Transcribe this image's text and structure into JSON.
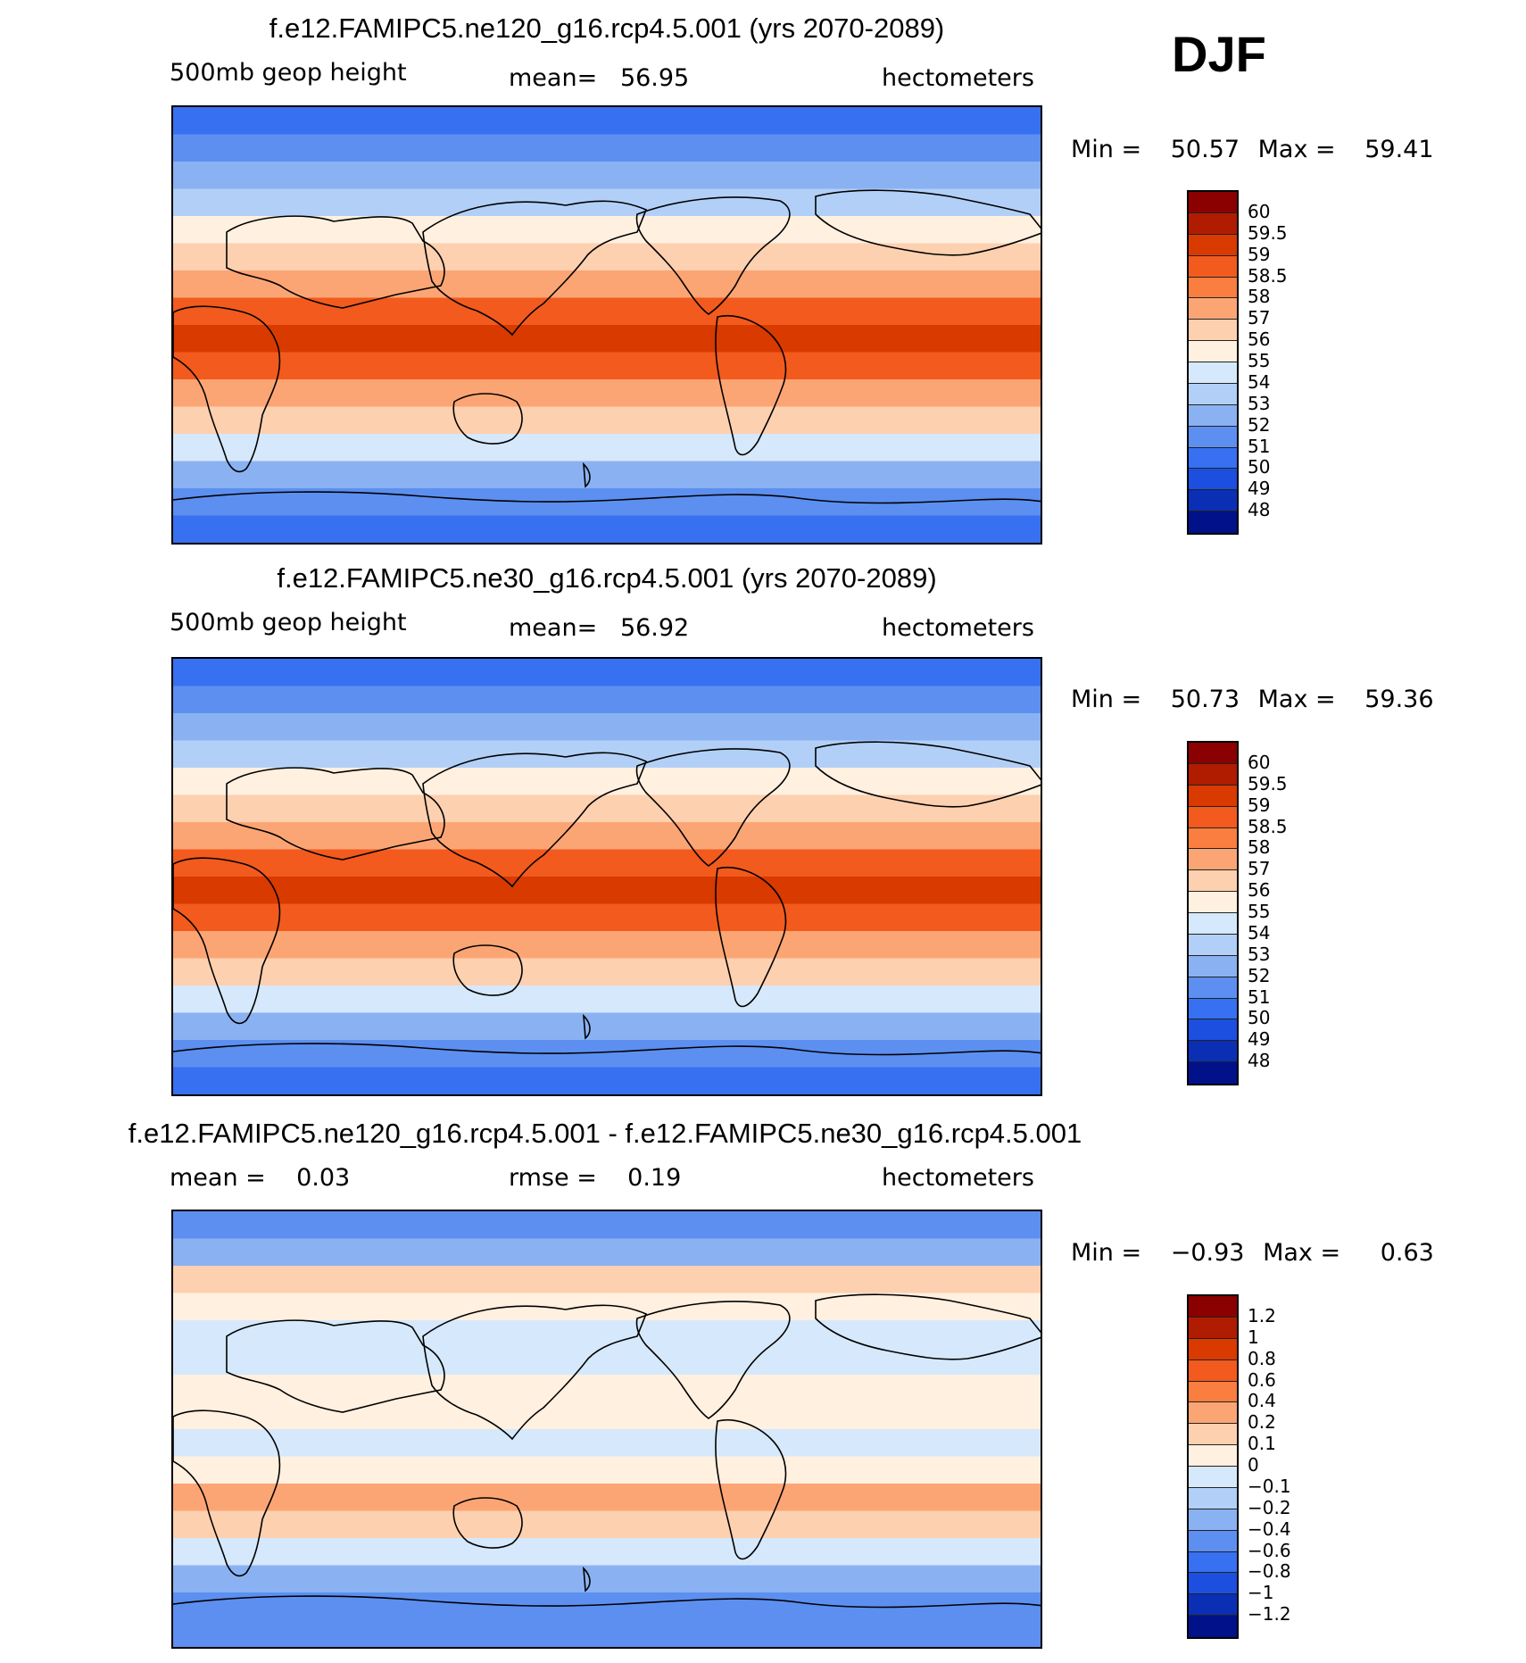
{
  "season": "DJF",
  "panels": [
    {
      "title": "f.e12.FAMIPC5.ne120_g16.rcp4.5.001 (yrs 2070-2089)",
      "left": "500mb geop height",
      "center": "mean=   56.95",
      "right": "hectometers",
      "min_label": "Min =",
      "min": "50.57",
      "max_label": "Max =",
      "max": "59.41",
      "levels": [
        "60",
        "59.5",
        "59",
        "58.5",
        "58",
        "57",
        "56",
        "55",
        "54",
        "53",
        "52",
        "51",
        "50",
        "49",
        "48"
      ],
      "colors": [
        "#8b0000",
        "#b01c00",
        "#d83a00",
        "#f25a1e",
        "#fa7e40",
        "#fca574",
        "#fdd0b0",
        "#fff0e0",
        "#d6e8fb",
        "#b2d0f7",
        "#8ab2f2",
        "#5c8ff0",
        "#3770f0",
        "#1c4fe0",
        "#0a2fb4",
        "#00118a"
      ],
      "map": {
        "bands": [
          "#3770f0",
          "#5c8ff0",
          "#8ab2f2",
          "#b2d0f7",
          "#fff0e0",
          "#fdd0b0",
          "#fca574",
          "#f25a1e",
          "#d83a00",
          "#f25a1e",
          "#fca574",
          "#fdd0b0",
          "#d6e8fb",
          "#8ab2f2",
          "#5c8ff0",
          "#3770f0"
        ]
      }
    },
    {
      "title": "f.e12.FAMIPC5.ne30_g16.rcp4.5.001 (yrs 2070-2089)",
      "left": "500mb geop height",
      "center": "mean=   56.92",
      "right": "hectometers",
      "min_label": "Min =",
      "min": "50.73",
      "max_label": "Max =",
      "max": "59.36",
      "levels": [
        "60",
        "59.5",
        "59",
        "58.5",
        "58",
        "57",
        "56",
        "55",
        "54",
        "53",
        "52",
        "51",
        "50",
        "49",
        "48"
      ],
      "colors": [
        "#8b0000",
        "#b01c00",
        "#d83a00",
        "#f25a1e",
        "#fa7e40",
        "#fca574",
        "#fdd0b0",
        "#fff0e0",
        "#d6e8fb",
        "#b2d0f7",
        "#8ab2f2",
        "#5c8ff0",
        "#3770f0",
        "#1c4fe0",
        "#0a2fb4",
        "#00118a"
      ],
      "map": {
        "bands": [
          "#3770f0",
          "#5c8ff0",
          "#8ab2f2",
          "#b2d0f7",
          "#fff0e0",
          "#fdd0b0",
          "#fca574",
          "#f25a1e",
          "#d83a00",
          "#f25a1e",
          "#fca574",
          "#fdd0b0",
          "#d6e8fb",
          "#8ab2f2",
          "#5c8ff0",
          "#3770f0"
        ]
      }
    },
    {
      "title": "f.e12.FAMIPC5.ne120_g16.rcp4.5.001 - f.e12.FAMIPC5.ne30_g16.rcp4.5.001",
      "left": "mean =    0.03",
      "center": "rmse =    0.19",
      "right": "hectometers",
      "min_label": "Min =",
      "min": "−0.93",
      "max_label": "Max =",
      "max": "0.63",
      "levels": [
        "1.2",
        "1",
        "0.8",
        "0.6",
        "0.4",
        "0.2",
        "0.1",
        "0",
        "−0.1",
        "−0.2",
        "−0.4",
        "−0.6",
        "−0.8",
        "−1",
        "−1.2"
      ],
      "colors": [
        "#8b0000",
        "#b01c00",
        "#d83a00",
        "#f25a1e",
        "#fa7e40",
        "#fca574",
        "#fdd0b0",
        "#fff0e0",
        "#d6e8fb",
        "#b2d0f7",
        "#8ab2f2",
        "#5c8ff0",
        "#3770f0",
        "#1c4fe0",
        "#0a2fb4",
        "#00118a"
      ],
      "map": {
        "bands": [
          "#5c8ff0",
          "#8ab2f2",
          "#fdd0b0",
          "#fff0e0",
          "#d6e8fb",
          "#d6e8fb",
          "#fff0e0",
          "#fff0e0",
          "#d6e8fb",
          "#fff0e0",
          "#fca574",
          "#fdd0b0",
          "#d6e8fb",
          "#8ab2f2",
          "#5c8ff0",
          "#5c8ff0"
        ]
      }
    }
  ]
}
